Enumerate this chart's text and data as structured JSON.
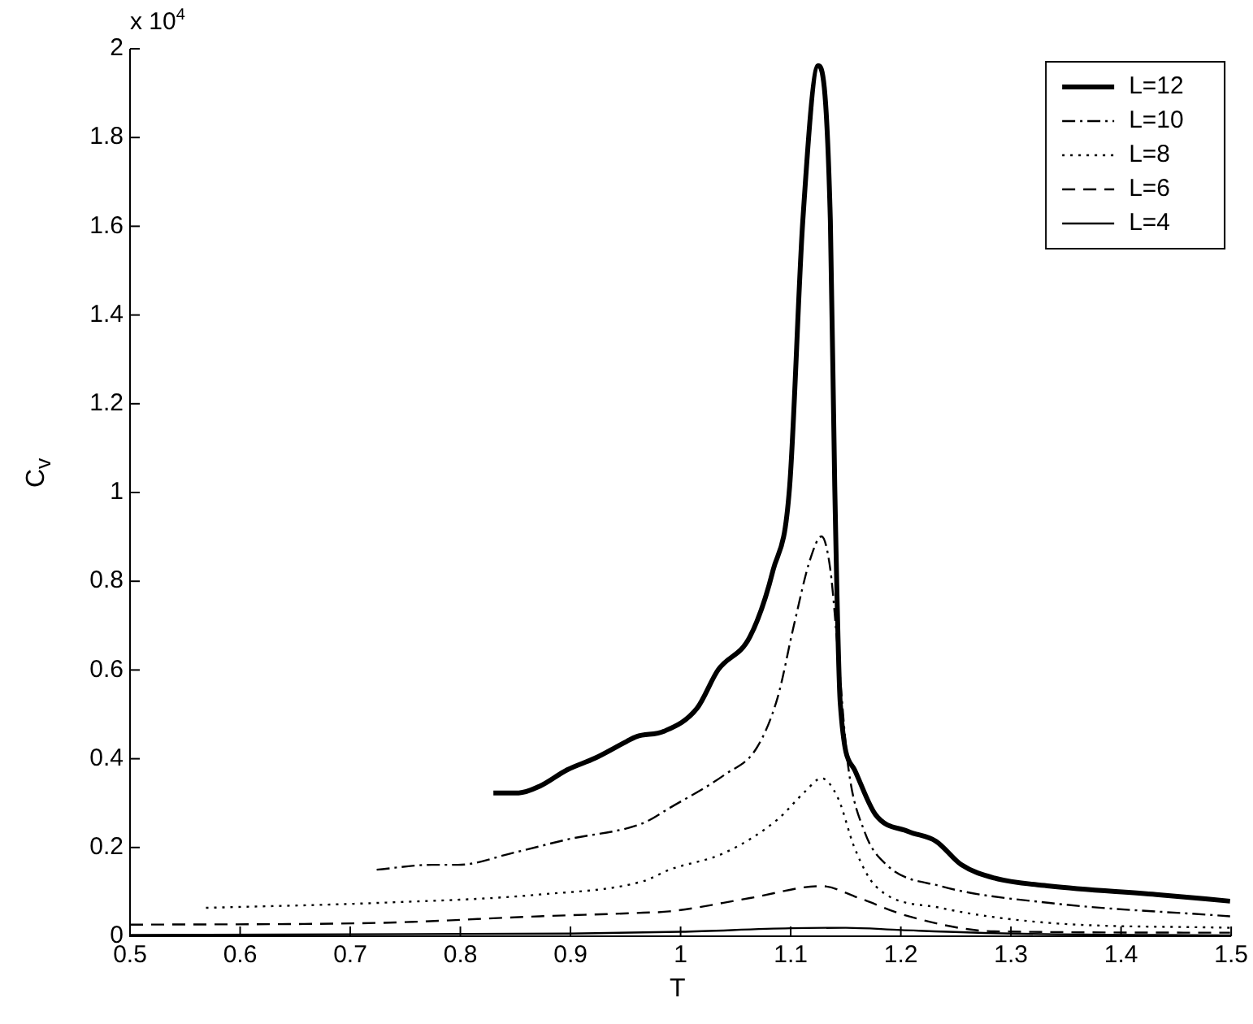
{
  "chart_data": {
    "type": "line",
    "xlabel": "T",
    "ylabel": "C$_{v}$",
    "annotations": [
      "x 10$^{4}$"
    ],
    "xlim": [
      0.5,
      1.5
    ],
    "xticks": [
      0.5,
      0.6,
      0.7,
      0.8,
      0.9,
      1,
      1.1,
      1.2,
      1.3,
      1.4,
      1.5
    ],
    "ylim": [
      0,
      2
    ],
    "yticks": [
      0,
      0.2,
      0.4,
      0.6,
      0.8,
      1,
      1.2,
      1.4,
      1.6,
      1.8,
      2
    ],
    "grid": false,
    "legend": "top right",
    "marker": "none",
    "series": [
      {
        "name": "L=12",
        "color": "#000000",
        "line_style": "solid",
        "x": [
          0.83,
          0.853,
          0.872,
          0.897,
          0.922,
          0.951,
          0.96,
          0.985,
          1.015,
          1.034,
          1.063,
          1.084,
          1.099,
          1.111,
          1.125,
          1.136,
          1.14,
          1.145,
          1.158,
          1.177,
          1.207,
          1.232,
          1.255,
          1.285,
          1.335,
          1.432,
          1.499
        ],
        "values": [
          0.323,
          0.323,
          0.338,
          0.375,
          0.401,
          0.439,
          0.45,
          0.462,
          0.514,
          0.6,
          0.675,
          0.825,
          1.013,
          1.613,
          1.962,
          1.613,
          1.013,
          0.525,
          0.375,
          0.274,
          0.236,
          0.214,
          0.161,
          0.131,
          0.113,
          0.094,
          0.079
        ]
      },
      {
        "name": "L=10",
        "color": "#000000",
        "line_style": "dashdot",
        "x": [
          0.724,
          0.774,
          0.798,
          0.848,
          0.897,
          0.966,
          0.99,
          1.04,
          1.069,
          1.088,
          1.103,
          1.118,
          1.128,
          1.136,
          1.143,
          1.152,
          1.167,
          1.187,
          1.236,
          1.335,
          1.499
        ],
        "values": [
          0.15,
          0.161,
          0.161,
          0.188,
          0.218,
          0.255,
          0.289,
          0.364,
          0.424,
          0.537,
          0.702,
          0.852,
          0.901,
          0.826,
          0.638,
          0.386,
          0.236,
          0.161,
          0.113,
          0.075,
          0.045
        ]
      },
      {
        "name": "L=8",
        "color": "#000000",
        "line_style": "dotted",
        "x": [
          0.569,
          0.724,
          0.872,
          0.966,
          0.99,
          1.04,
          1.088,
          1.113,
          1.128,
          1.143,
          1.158,
          1.177,
          1.236,
          1.335,
          1.499
        ],
        "values": [
          0.064,
          0.075,
          0.094,
          0.124,
          0.15,
          0.188,
          0.263,
          0.326,
          0.356,
          0.311,
          0.199,
          0.113,
          0.064,
          0.03,
          0.019
        ]
      },
      {
        "name": "L=6",
        "color": "#000000",
        "line_style": "dashed",
        "x": [
          0.5,
          0.724,
          0.872,
          0.966,
          0.99,
          1.063,
          1.128,
          1.162,
          1.207,
          1.285,
          1.499
        ],
        "values": [
          0.026,
          0.03,
          0.045,
          0.053,
          0.056,
          0.086,
          0.113,
          0.086,
          0.045,
          0.011,
          0.008
        ]
      },
      {
        "name": "L=4",
        "color": "#000000",
        "line_style": "solid",
        "x": [
          0.5,
          0.9,
          1.0,
          1.1,
          1.15,
          1.2,
          1.3,
          1.5
        ],
        "values": [
          0.003,
          0.006,
          0.01,
          0.018,
          0.019,
          0.014,
          0.006,
          0.002
        ]
      }
    ]
  }
}
